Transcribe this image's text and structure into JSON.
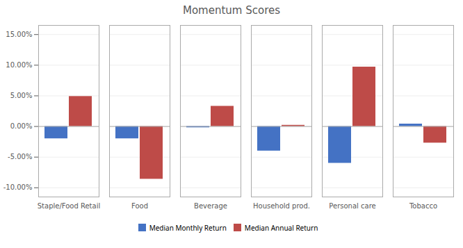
{
  "chart_data": {
    "type": "bar",
    "title": "Momentum Scores",
    "categories": [
      "Staple/Food Retail",
      "Food",
      "Beverage",
      "Household prod.",
      "Personal care",
      "Tobacco"
    ],
    "series": [
      {
        "name": "Median Monthly Return",
        "color": "#4472C4",
        "values": [
          -0.02,
          -0.02,
          -0.002,
          -0.04,
          -0.06,
          0.004
        ]
      },
      {
        "name": "Median Annual Return",
        "color": "#BE4B48",
        "values": [
          0.049,
          -0.086,
          0.033,
          0.002,
          0.097,
          -0.027
        ]
      }
    ],
    "ylim": [
      -0.115,
      0.165
    ],
    "yticks": [
      {
        "value": -0.1,
        "label": "-10.00%"
      },
      {
        "value": -0.05,
        "label": "-5.00%"
      },
      {
        "value": 0.0,
        "label": "0.00%"
      },
      {
        "value": 0.05,
        "label": "5.00%"
      },
      {
        "value": 0.1,
        "label": "10.00%"
      },
      {
        "value": 0.15,
        "label": "15.00%"
      }
    ],
    "grid": true,
    "legend": "bottom"
  }
}
